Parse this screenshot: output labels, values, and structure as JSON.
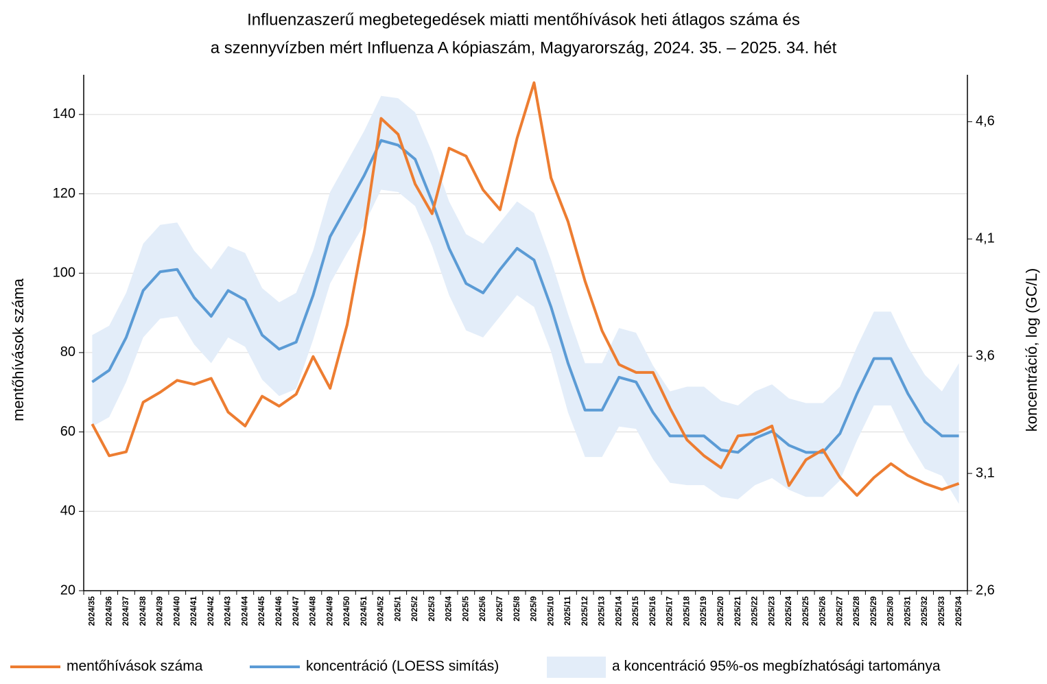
{
  "chart_data": {
    "type": "line",
    "title": [
      "Influenzaszerű megbetegedések miatti mentőhívások heti átlagos száma és",
      "a szennyvízben mért Influenza A kópiaszám, Magyarország, 2024. 35. – 2025. 34. hét"
    ],
    "y_label": "mentőhívások száma",
    "y2_label": "koncentráció, log (GC/L)",
    "categories": [
      "2024/35",
      "2024/36",
      "2024/37",
      "2024/38",
      "2024/39",
      "2024/40",
      "2024/41",
      "2024/42",
      "2024/43",
      "2024/44",
      "2024/45",
      "2024/46",
      "2024/47",
      "2024/48",
      "2024/49",
      "2024/50",
      "2024/51",
      "2024/52",
      "2025/1",
      "2025/2",
      "2025/3",
      "2025/4",
      "2025/5",
      "2025/6",
      "2025/7",
      "2025/8",
      "2025/9",
      "2025/10",
      "2025/11",
      "2025/12",
      "2025/13",
      "2025/14",
      "2025/15",
      "2025/16",
      "2025/17",
      "2025/18",
      "2025/19",
      "2025/20",
      "2025/21",
      "2025/22",
      "2025/23",
      "2025/24",
      "2025/25",
      "2025/26",
      "2025/27",
      "2025/28",
      "2025/29",
      "2025/30",
      "2025/31",
      "2025/32",
      "2025/33",
      "2025/34"
    ],
    "ylim": [
      20,
      150
    ],
    "yticks": [
      20,
      40,
      60,
      80,
      100,
      120,
      140
    ],
    "y2lim": [
      2.6,
      4.8
    ],
    "y2ticks": [
      {
        "value": 2.6,
        "label": "2,6"
      },
      {
        "value": 3.1,
        "label": "3,1"
      },
      {
        "value": 3.6,
        "label": "3,6"
      },
      {
        "value": 4.1,
        "label": "4,1"
      },
      {
        "value": 4.6,
        "label": "4,6"
      }
    ],
    "grid": true,
    "bands": [
      {
        "name": "a koncentráció 95%-os megbízhatósági tartománya",
        "color": "#e3edf9",
        "axis": "y2",
        "upper": [
          3.69,
          3.73,
          3.87,
          4.08,
          4.16,
          4.17,
          4.05,
          3.97,
          4.07,
          4.04,
          3.89,
          3.83,
          3.87,
          4.05,
          4.3,
          4.43,
          4.56,
          4.71,
          4.7,
          4.64,
          4.47,
          4.26,
          4.12,
          4.08,
          4.17,
          4.26,
          4.21,
          4.01,
          3.78,
          3.57,
          3.57,
          3.72,
          3.7,
          3.56,
          3.45,
          3.47,
          3.47,
          3.41,
          3.39,
          3.45,
          3.48,
          3.42,
          3.4,
          3.4,
          3.47,
          3.64,
          3.79,
          3.79,
          3.64,
          3.52,
          3.45,
          3.57
        ],
        "lower": [
          3.3,
          3.34,
          3.49,
          3.68,
          3.76,
          3.77,
          3.65,
          3.57,
          3.68,
          3.64,
          3.5,
          3.43,
          3.46,
          3.67,
          3.91,
          4.04,
          4.16,
          4.31,
          4.3,
          4.24,
          4.07,
          3.86,
          3.71,
          3.68,
          3.77,
          3.86,
          3.81,
          3.62,
          3.36,
          3.17,
          3.17,
          3.3,
          3.29,
          3.16,
          3.06,
          3.05,
          3.05,
          3.0,
          2.99,
          3.05,
          3.08,
          3.03,
          3.0,
          3.0,
          3.07,
          3.24,
          3.39,
          3.39,
          3.24,
          3.12,
          3.09,
          2.97
        ]
      }
    ],
    "series": [
      {
        "name": "mentőhívások száma",
        "color": "#ed7d31",
        "values": [
          62,
          54,
          55,
          67.5,
          70,
          73,
          72,
          73.5,
          65,
          61.5,
          69,
          66.5,
          69.5,
          79,
          71,
          87,
          110,
          139,
          135,
          122.5,
          115,
          131.5,
          129.5,
          121,
          116,
          134,
          148,
          124,
          113,
          98,
          85.5,
          77,
          75,
          75,
          66,
          58,
          54,
          51,
          59,
          59.5,
          61.5,
          46.5,
          53,
          55.5,
          48.5,
          44,
          48.5,
          52,
          49,
          47,
          45.5,
          47
        ]
      },
      {
        "name": "koncentráció (LOESS simítás)",
        "color": "#5b9bd5",
        "axis": "y2",
        "values": [
          3.49,
          3.54,
          3.68,
          3.88,
          3.96,
          3.97,
          3.85,
          3.77,
          3.88,
          3.84,
          3.69,
          3.63,
          3.66,
          3.86,
          4.11,
          4.24,
          4.37,
          4.52,
          4.5,
          4.44,
          4.26,
          4.06,
          3.91,
          3.87,
          3.97,
          4.06,
          4.01,
          3.81,
          3.57,
          3.37,
          3.37,
          3.51,
          3.49,
          3.36,
          3.26,
          3.26,
          3.26,
          3.2,
          3.19,
          3.25,
          3.28,
          3.22,
          3.19,
          3.19,
          3.27,
          3.44,
          3.59,
          3.59,
          3.44,
          3.32,
          3.26,
          3.26
        ]
      }
    ]
  }
}
